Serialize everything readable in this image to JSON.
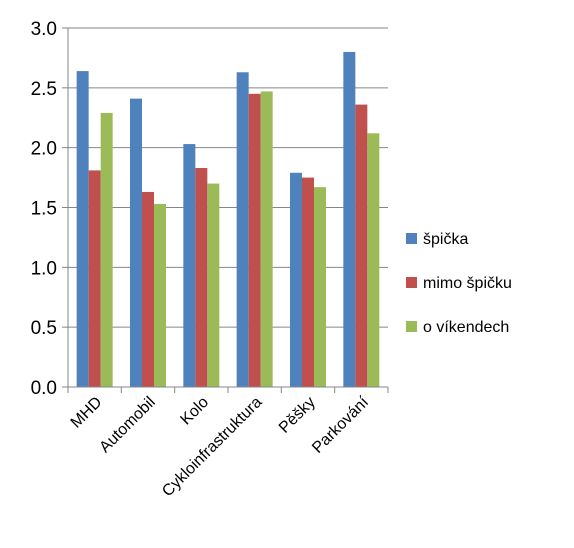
{
  "chart_data": {
    "type": "bar",
    "title": "",
    "xlabel": "",
    "ylabel": "",
    "categories": [
      "MHD",
      "Automobil",
      "Kolo",
      "Cykloinfrastruktura",
      "Pěšky",
      "Parkování"
    ],
    "series": [
      {
        "name": "špička",
        "color": "#4F81BD",
        "values": [
          2.64,
          2.41,
          2.03,
          2.63,
          1.79,
          2.8
        ]
      },
      {
        "name": "mimo špičku",
        "color": "#C0504D",
        "values": [
          1.81,
          1.63,
          1.83,
          2.45,
          1.75,
          2.36
        ]
      },
      {
        "name": "o víkendech",
        "color": "#9BBB59",
        "values": [
          2.29,
          1.53,
          1.7,
          2.47,
          1.67,
          2.12
        ]
      }
    ],
    "ylim": [
      0,
      3
    ],
    "yticks": [
      "0.0",
      "0.5",
      "1.0",
      "1.5",
      "2.0",
      "2.5",
      "3.0"
    ],
    "grid": true,
    "legend": "right"
  }
}
